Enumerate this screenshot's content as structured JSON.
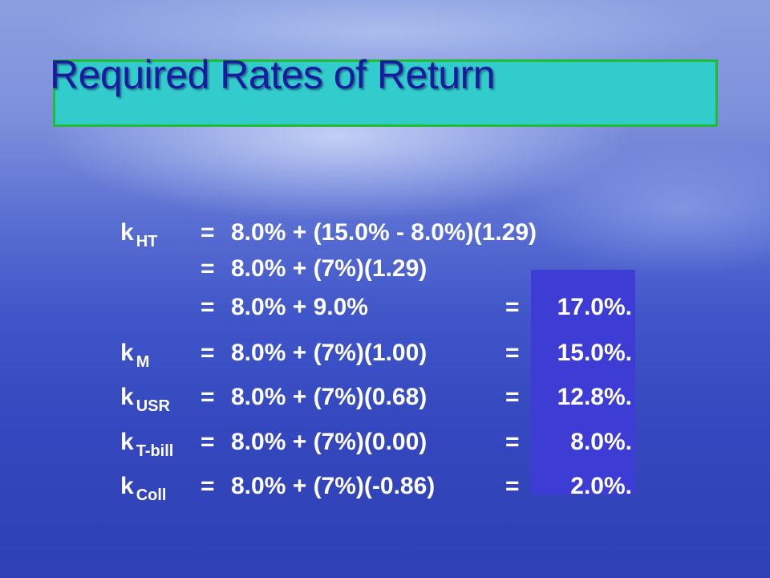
{
  "title": "Required Rates of Return",
  "rows": [
    {
      "label": "k",
      "sub": "HT",
      "eq": "=",
      "expr": "8.0% + (15.0% - 8.0%)(1.29)"
    },
    {
      "eq": "=",
      "expr": "8.0% + (7%)(1.29)"
    },
    {
      "eq": "=",
      "expr": "8.0% + 9.0%",
      "eq2": "=",
      "result": "17.0%."
    },
    {
      "label": "k",
      "sub": "M",
      "eq": "=",
      "expr": "8.0% + (7%)(1.00)",
      "eq2": "=",
      "result": "15.0%."
    },
    {
      "label": "k",
      "sub": "USR",
      "eq": "=",
      "expr": "8.0% + (7%)(0.68)",
      "eq2": "=",
      "result": "12.8%."
    },
    {
      "label": "k",
      "sub": "T-bill",
      "eq": "=",
      "expr": "8.0% + (7%)(0.00)",
      "eq2": "=",
      "result": "8.0%."
    },
    {
      "label": "k",
      "sub": "Coll",
      "eq": "=",
      "expr": "8.0% + (7%)(-0.86)",
      "eq2": "=",
      "result": "2.0%."
    }
  ]
}
